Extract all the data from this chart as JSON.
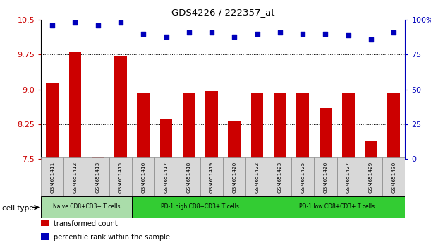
{
  "title": "GDS4226 / 222357_at",
  "samples": [
    "GSM651411",
    "GSM651412",
    "GSM651413",
    "GSM651415",
    "GSM651416",
    "GSM651417",
    "GSM651418",
    "GSM651419",
    "GSM651420",
    "GSM651422",
    "GSM651423",
    "GSM651425",
    "GSM651426",
    "GSM651427",
    "GSM651429",
    "GSM651430"
  ],
  "bar_values": [
    9.15,
    9.82,
    7.52,
    9.72,
    8.93,
    8.35,
    8.92,
    8.97,
    8.3,
    8.93,
    8.93,
    8.93,
    8.6,
    8.93,
    7.9,
    8.93
  ],
  "dot_values_pct": [
    96,
    98,
    96,
    98,
    90,
    88,
    91,
    91,
    88,
    90,
    91,
    90,
    90,
    89,
    86,
    91
  ],
  "ylim_left": [
    7.5,
    10.5
  ],
  "ylim_right": [
    0,
    100
  ],
  "yticks_left": [
    7.5,
    8.25,
    9.0,
    9.75,
    10.5
  ],
  "yticks_right": [
    0,
    25,
    50,
    75,
    100
  ],
  "bar_color": "#cc0000",
  "dot_color": "#0000bb",
  "groups": [
    {
      "label": "Naive CD8+CD3+ T cells",
      "start": 0,
      "end": 4,
      "color": "#aaddaa"
    },
    {
      "label": "PD-1 high CD8+CD3+ T cells",
      "start": 4,
      "end": 10,
      "color": "#33cc33"
    },
    {
      "label": "PD-1 low CD8+CD3+ T cells",
      "start": 10,
      "end": 16,
      "color": "#33cc33"
    }
  ],
  "legend_bar_label": "transformed count",
  "legend_dot_label": "percentile rank within the sample",
  "cell_type_label": "cell type",
  "tick_color_left": "#cc0000",
  "tick_color_right": "#0000bb",
  "baseline": 7.5
}
